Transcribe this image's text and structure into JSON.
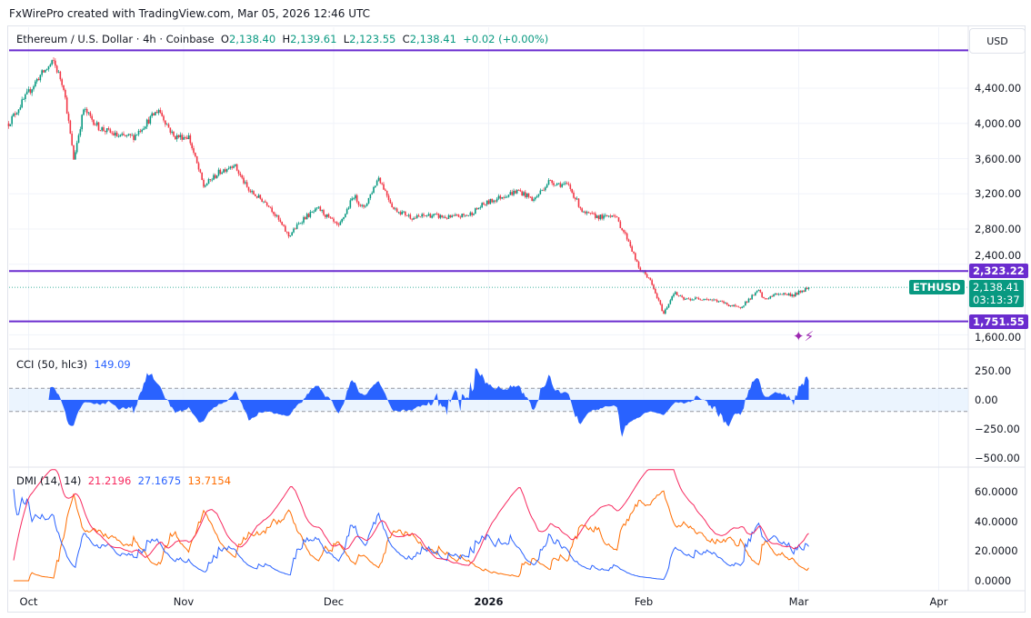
{
  "credit": "FxWirePro created with TradingView.com, Mar 05, 2026 12:46 UTC",
  "legend": {
    "symbol": "Ethereum / U.S. Dollar · 4h · Coinbase",
    "o_label": "O",
    "o": "2,138.40",
    "h_label": "H",
    "h": "2,139.61",
    "l_label": "L",
    "l": "2,123.55",
    "c_label": "C",
    "c": "2,138.41",
    "change": "+0.02 (+0.00%)"
  },
  "currency_button": "USD",
  "price_axis": [
    "4,400.00",
    "4,000.00",
    "3,600.00",
    "3,200.00",
    "2,800.00",
    "2,400.00",
    "1,600.00"
  ],
  "levels": [
    {
      "price": 4830,
      "label": ""
    },
    {
      "price": 2323.22,
      "label": "2,323.22"
    },
    {
      "price": 1751.55,
      "label": "1,751.55"
    }
  ],
  "last_price": {
    "symbol": "ETHUSD",
    "price": "2,138.41",
    "countdown": "03:13:37",
    "value": 2138.41
  },
  "cci": {
    "title": "CCI (50, hlc3)",
    "value": "149.09",
    "axis": [
      "250.00",
      "0.00",
      "−250.00",
      "−500.00"
    ]
  },
  "dmi": {
    "title": "DMI (14, 14)",
    "adx": "21.2196",
    "plus_di": "27.1675",
    "minus_di": "13.7154",
    "axis": [
      "60.0000",
      "40.0000",
      "20.0000",
      "0.0000"
    ]
  },
  "time_axis": [
    "Oct",
    "Nov",
    "Dec",
    "2026",
    "Feb",
    "Mar",
    "Apr"
  ],
  "colors": {
    "up": "#089981",
    "down": "#f23645",
    "level": "#6a2ccf",
    "cci": "#2962ff",
    "adx": "#f7295f",
    "plus_di": "#2962ff",
    "minus_di": "#ff6d00"
  },
  "chart_data": {
    "type": "candlestick",
    "title": "Ethereum / U.S. Dollar · 4h · Coinbase",
    "ylim": [
      1550,
      4900
    ],
    "price_path_days_from_oct1": [
      -4,
      -1,
      2,
      5,
      7,
      9,
      11,
      14,
      18,
      21,
      26,
      29,
      32,
      35,
      38,
      41,
      44,
      48,
      52,
      55,
      58,
      62,
      65,
      67,
      70,
      73,
      77,
      80,
      84,
      88,
      91,
      95,
      98,
      101,
      104,
      108,
      111,
      115,
      117,
      120,
      122,
      124,
      127,
      129,
      131,
      135,
      138,
      142,
      146,
      147,
      150,
      153,
      156
    ],
    "price_path_close": [
      4000,
      4265,
      4524,
      4700,
      4420,
      3595,
      4160,
      3955,
      3850,
      3850,
      4160,
      3850,
      3850,
      3285,
      3440,
      3540,
      3235,
      3080,
      2720,
      2925,
      3030,
      2820,
      3180,
      3030,
      3390,
      3030,
      2925,
      2960,
      2930,
      2960,
      3080,
      3180,
      3235,
      3130,
      3340,
      3290,
      2975,
      2930,
      2975,
      2665,
      2355,
      2250,
      1840,
      2080,
      2000,
      2015,
      1980,
      1900,
      2100,
      2000,
      2070,
      2050,
      2138.41
    ]
  }
}
